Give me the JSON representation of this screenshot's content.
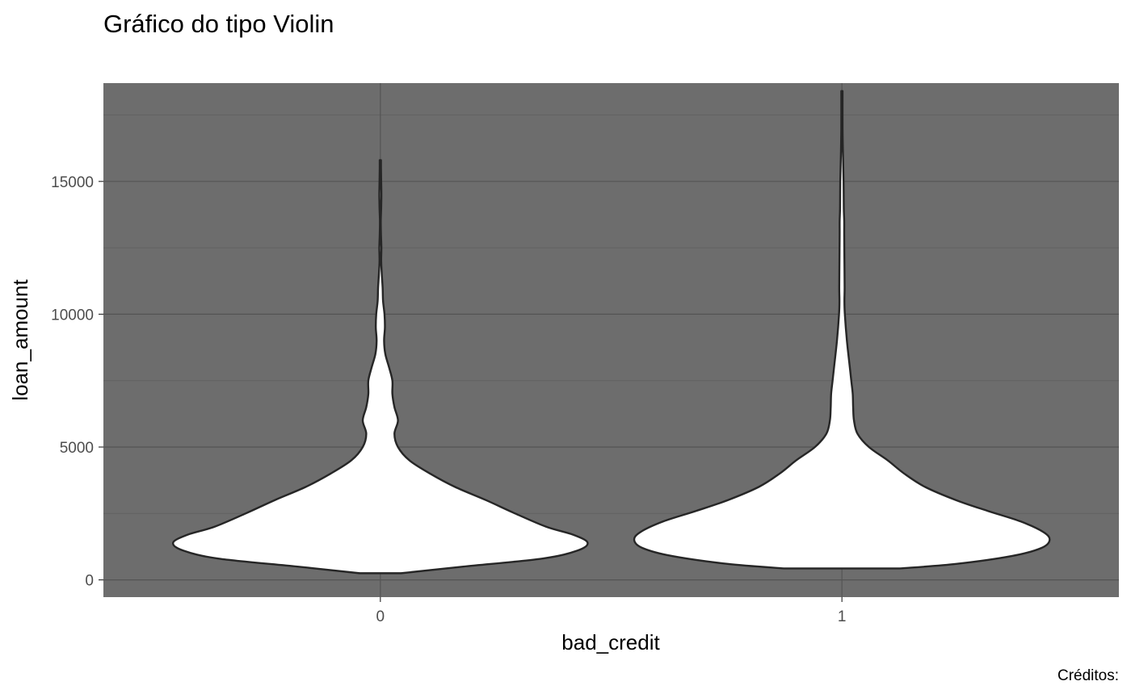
{
  "chart_data": {
    "type": "violin",
    "title": "Gráfico do tipo Violin",
    "xlabel": "bad_credit",
    "ylabel": "loan_amount",
    "caption": "Créditos:",
    "categories": [
      "0",
      "1"
    ],
    "y_ticks": [
      0,
      5000,
      10000,
      15000
    ],
    "ylim": [
      -650,
      18700
    ],
    "x_range": [
      0.4,
      2.6
    ],
    "grid": true,
    "legend": "none",
    "colors": {
      "panel_background": "#6d6d6d",
      "grid_major": "#545454",
      "grid_minor": "#626262",
      "violin_fill": "#ffffff",
      "violin_outline": "#262626"
    },
    "violins": [
      {
        "category": "0",
        "max_half_width": 0.449,
        "density_profile": [
          [
            250,
            0.1
          ],
          [
            500,
            0.4
          ],
          [
            800,
            0.78
          ],
          [
            1100,
            0.95
          ],
          [
            1400,
            1.0
          ],
          [
            1700,
            0.93
          ],
          [
            2000,
            0.8
          ],
          [
            2500,
            0.65
          ],
          [
            3000,
            0.51
          ],
          [
            3500,
            0.36
          ],
          [
            4000,
            0.24
          ],
          [
            4500,
            0.14
          ],
          [
            5000,
            0.085
          ],
          [
            5500,
            0.068
          ],
          [
            6000,
            0.085
          ],
          [
            6500,
            0.068
          ],
          [
            7000,
            0.058
          ],
          [
            7500,
            0.058
          ],
          [
            8000,
            0.042
          ],
          [
            8500,
            0.024
          ],
          [
            9000,
            0.018
          ],
          [
            9500,
            0.022
          ],
          [
            10000,
            0.02
          ],
          [
            10500,
            0.013
          ],
          [
            11000,
            0.011
          ],
          [
            11500,
            0.007
          ],
          [
            12000,
            0.004
          ],
          [
            12500,
            0.005
          ],
          [
            13000,
            0.003
          ],
          [
            13500,
            0.002
          ],
          [
            14000,
            0.004
          ],
          [
            14500,
            0.005
          ],
          [
            15000,
            0.004
          ],
          [
            15500,
            0.003
          ],
          [
            15800,
            0.003
          ]
        ]
      },
      {
        "category": "1",
        "max_half_width": 0.45,
        "density_profile": [
          [
            430,
            0.28
          ],
          [
            600,
            0.55
          ],
          [
            900,
            0.82
          ],
          [
            1200,
            0.96
          ],
          [
            1500,
            1.0
          ],
          [
            1800,
            0.97
          ],
          [
            2200,
            0.86
          ],
          [
            2600,
            0.7
          ],
          [
            3000,
            0.55
          ],
          [
            3500,
            0.4
          ],
          [
            4000,
            0.3
          ],
          [
            4500,
            0.22
          ],
          [
            5000,
            0.13
          ],
          [
            5500,
            0.075
          ],
          [
            6000,
            0.058
          ],
          [
            6500,
            0.054
          ],
          [
            7000,
            0.052
          ],
          [
            7500,
            0.045
          ],
          [
            8000,
            0.038
          ],
          [
            9000,
            0.024
          ],
          [
            10000,
            0.014
          ],
          [
            10500,
            0.012
          ],
          [
            11000,
            0.013
          ],
          [
            12000,
            0.012
          ],
          [
            13000,
            0.011
          ],
          [
            13500,
            0.011
          ],
          [
            14000,
            0.009
          ],
          [
            15000,
            0.008
          ],
          [
            16000,
            0.005
          ],
          [
            17000,
            0.003
          ],
          [
            18400,
            0.003
          ]
        ]
      }
    ]
  }
}
